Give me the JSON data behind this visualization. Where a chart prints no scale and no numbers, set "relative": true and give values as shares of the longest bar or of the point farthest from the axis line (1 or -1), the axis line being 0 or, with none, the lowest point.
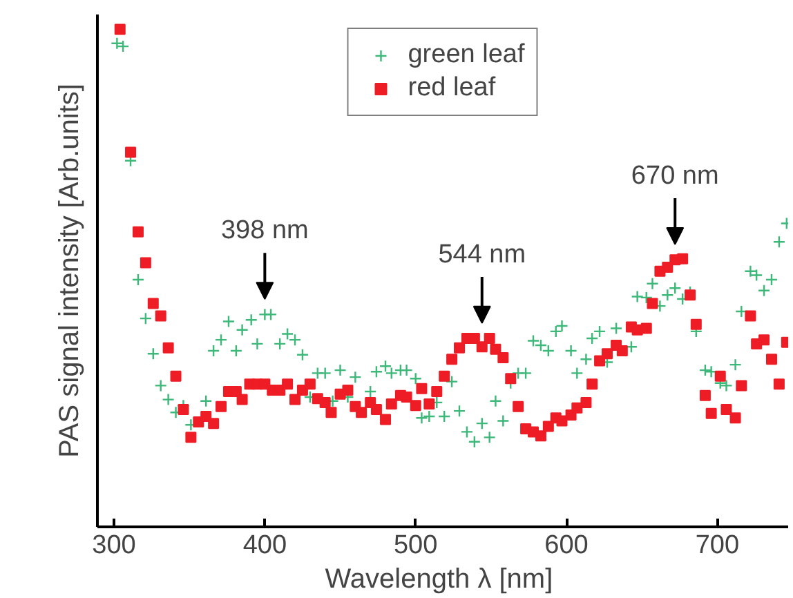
{
  "chart_data": {
    "type": "scatter",
    "relative": true,
    "xlabel": "Wavelength λ  [nm]",
    "ylabel": "PAS signal intensity [Arb.units]",
    "xlim": [
      289,
      747
    ],
    "xticks": [
      300,
      400,
      500,
      600,
      700
    ],
    "grid": false,
    "legend": "top",
    "tick_labels": "x",
    "annotations": [
      {
        "text": "398 nm",
        "x": 400,
        "y": 0.427
      },
      {
        "text": "544 nm",
        "x": 544,
        "y": 0.379
      },
      {
        "text": "670 nm",
        "x": 672,
        "y": 0.537
      }
    ],
    "series": [
      {
        "name": "green leaf",
        "color": "#3cb878",
        "marker": "cross",
        "x": [
          302,
          306,
          311,
          316,
          321,
          326,
          331,
          336,
          341,
          346,
          351,
          361,
          366,
          371,
          376,
          381,
          385,
          391,
          395,
          400,
          404,
          410,
          415,
          420,
          425,
          430,
          435,
          440,
          445,
          450,
          455,
          460,
          470,
          474,
          480,
          484,
          490,
          494,
          500,
          504,
          509,
          514,
          519,
          524,
          529,
          534,
          539,
          544,
          549,
          553,
          558,
          563,
          568,
          573,
          578,
          583,
          588,
          593,
          597,
          603,
          607,
          613,
          617,
          622,
          627,
          633,
          643,
          647,
          653,
          657,
          662,
          667,
          672,
          677,
          682,
          686,
          692,
          696,
          702,
          706,
          712,
          716,
          722,
          726,
          731,
          736,
          741,
          746
        ],
        "values": [
          0.972,
          0.966,
          0.736,
          0.497,
          0.419,
          0.348,
          0.284,
          0.256,
          0.23,
          0.244,
          0.205,
          0.253,
          0.354,
          0.376,
          0.413,
          0.354,
          0.396,
          0.416,
          0.368,
          0.427,
          0.427,
          0.368,
          0.388,
          0.376,
          0.346,
          0.261,
          0.309,
          0.309,
          0.253,
          0.315,
          0.261,
          0.301,
          0.272,
          0.312,
          0.323,
          0.309,
          0.315,
          0.315,
          0.298,
          0.219,
          0.222,
          0.25,
          0.222,
          0.292,
          0.233,
          0.191,
          0.171,
          0.208,
          0.18,
          0.253,
          0.213,
          0.289,
          0.309,
          0.309,
          0.374,
          0.365,
          0.354,
          0.393,
          0.404,
          0.354,
          0.309,
          0.337,
          0.379,
          0.393,
          0.331,
          0.399,
          0.362,
          0.463,
          0.461,
          0.489,
          0.444,
          0.466,
          0.48,
          0.458,
          0.472,
          0.393,
          0.315,
          0.312,
          0.289,
          0.284,
          0.326,
          0.433,
          0.514,
          0.506,
          0.475,
          0.497,
          0.573,
          0.61
        ]
      },
      {
        "name": "red leaf",
        "color": "#ee1c25",
        "marker": "square",
        "x": [
          304,
          311,
          316,
          321,
          326,
          331,
          336,
          341,
          346,
          351,
          356,
          361,
          366,
          371,
          376,
          381,
          385,
          390,
          395,
          400,
          405,
          410,
          415,
          420,
          425,
          430,
          435,
          440,
          444,
          450,
          455,
          460,
          464,
          470,
          474,
          480,
          484,
          490,
          494,
          500,
          504,
          509,
          514,
          519,
          524,
          529,
          534,
          539,
          544,
          549,
          553,
          558,
          563,
          568,
          573,
          578,
          583,
          588,
          593,
          597,
          603,
          607,
          613,
          617,
          622,
          627,
          633,
          637,
          643,
          647,
          653,
          657,
          662,
          667,
          672,
          677,
          682,
          686,
          692,
          696,
          702,
          706,
          712,
          716,
          722,
          726,
          731,
          736,
          741,
          746
        ],
        "values": [
          1.0,
          0.753,
          0.593,
          0.531,
          0.449,
          0.424,
          0.36,
          0.303,
          0.236,
          0.18,
          0.211,
          0.222,
          0.208,
          0.242,
          0.272,
          0.272,
          0.256,
          0.287,
          0.287,
          0.287,
          0.275,
          0.275,
          0.287,
          0.256,
          0.275,
          0.287,
          0.258,
          0.25,
          0.23,
          0.267,
          0.275,
          0.242,
          0.23,
          0.25,
          0.236,
          0.216,
          0.247,
          0.264,
          0.261,
          0.244,
          0.278,
          0.247,
          0.272,
          0.303,
          0.337,
          0.36,
          0.379,
          0.379,
          0.362,
          0.379,
          0.357,
          0.34,
          0.298,
          0.242,
          0.197,
          0.191,
          0.183,
          0.202,
          0.219,
          0.213,
          0.225,
          0.239,
          0.25,
          0.287,
          0.334,
          0.348,
          0.365,
          0.354,
          0.402,
          0.396,
          0.399,
          0.449,
          0.514,
          0.522,
          0.537,
          0.539,
          0.466,
          0.407,
          0.264,
          0.228,
          0.303,
          0.236,
          0.219,
          0.284,
          0.424,
          0.368,
          0.376,
          0.337,
          0.287,
          0.371
        ]
      }
    ]
  }
}
